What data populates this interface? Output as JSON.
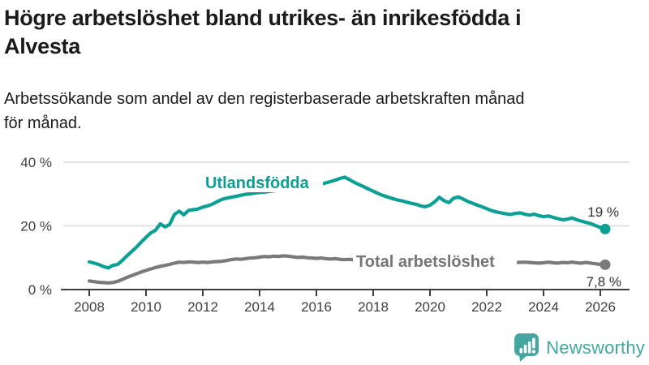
{
  "header": {
    "title_line1": "Högre arbetslöshet bland utrikes- än inrikesfödda i",
    "title_line2": "Alvesta",
    "subtitle_line1": "Arbetssökande som andel av den registerbaserade arbetskraften månad",
    "subtitle_line2": "för månad."
  },
  "branding": {
    "logo_text": "Newsworthy",
    "logo_color": "#43a79f"
  },
  "chart_data": {
    "type": "line",
    "title": "Högre arbetslöshet bland utrikes- än inrikesfödda i Alvesta",
    "subtitle": "Arbetssökande som andel av den registerbaserade arbetskraften månad för månad.",
    "xlabel": "",
    "ylabel": "",
    "xlim": [
      2007,
      2027
    ],
    "ylim": [
      0,
      40
    ],
    "grid": "horizontal",
    "legend_position": "inline-labels",
    "x_tick_years": [
      2008,
      2010,
      2012,
      2014,
      2016,
      2018,
      2020,
      2022,
      2024,
      2026
    ],
    "x_tick_labels": [
      "2008",
      "2010",
      "2012",
      "2014",
      "2016",
      "2018",
      "2020",
      "2022",
      "2024",
      "2026"
    ],
    "y_tick_values": [
      0,
      20,
      40
    ],
    "y_tick_labels": [
      "0 %",
      "20 %",
      "40 %"
    ],
    "series": [
      {
        "name": "Utlandsfödda",
        "color": "#0aa093",
        "end_label": "19 %",
        "points": [
          [
            2008.0,
            8.7
          ],
          [
            2008.17,
            8.3
          ],
          [
            2008.33,
            7.9
          ],
          [
            2008.5,
            7.2
          ],
          [
            2008.67,
            6.8
          ],
          [
            2008.83,
            7.6
          ],
          [
            2009.0,
            7.9
          ],
          [
            2009.17,
            9.2
          ],
          [
            2009.33,
            10.6
          ],
          [
            2009.5,
            12.0
          ],
          [
            2009.67,
            13.4
          ],
          [
            2009.83,
            14.9
          ],
          [
            2010.0,
            16.4
          ],
          [
            2010.17,
            17.8
          ],
          [
            2010.33,
            18.6
          ],
          [
            2010.5,
            20.6
          ],
          [
            2010.67,
            19.7
          ],
          [
            2010.83,
            20.4
          ],
          [
            2011.0,
            23.6
          ],
          [
            2011.17,
            24.6
          ],
          [
            2011.33,
            23.5
          ],
          [
            2011.5,
            24.9
          ],
          [
            2011.67,
            25.1
          ],
          [
            2011.83,
            25.3
          ],
          [
            2012.0,
            25.9
          ],
          [
            2012.17,
            26.3
          ],
          [
            2012.33,
            26.8
          ],
          [
            2012.5,
            27.6
          ],
          [
            2012.67,
            28.3
          ],
          [
            2012.83,
            28.7
          ],
          [
            2013.0,
            29.0
          ],
          [
            2013.17,
            29.3
          ],
          [
            2013.33,
            29.6
          ],
          [
            2013.5,
            29.9
          ],
          [
            2013.67,
            30.1
          ],
          [
            2013.83,
            30.3
          ],
          [
            2014.0,
            30.5
          ],
          [
            2014.17,
            30.6
          ],
          [
            2014.33,
            30.8
          ],
          [
            2014.5,
            31.0
          ],
          [
            2014.67,
            31.2
          ],
          [
            2014.83,
            31.4
          ],
          [
            2015.0,
            31.7
          ],
          [
            2015.17,
            31.9
          ],
          [
            2015.33,
            32.1
          ],
          [
            2015.5,
            32.3
          ],
          [
            2015.67,
            32.5
          ],
          [
            2015.83,
            32.6
          ],
          [
            2016.0,
            32.8
          ],
          [
            2016.17,
            33.1
          ],
          [
            2016.33,
            33.5
          ],
          [
            2016.5,
            33.9
          ],
          [
            2016.67,
            34.4
          ],
          [
            2016.83,
            34.9
          ],
          [
            2017.0,
            35.3
          ],
          [
            2017.17,
            34.5
          ],
          [
            2017.33,
            33.7
          ],
          [
            2017.5,
            33.0
          ],
          [
            2017.67,
            32.3
          ],
          [
            2017.83,
            31.6
          ],
          [
            2018.0,
            30.9
          ],
          [
            2018.17,
            30.2
          ],
          [
            2018.33,
            29.6
          ],
          [
            2018.5,
            29.1
          ],
          [
            2018.67,
            28.6
          ],
          [
            2018.83,
            28.2
          ],
          [
            2019.0,
            27.9
          ],
          [
            2019.17,
            27.5
          ],
          [
            2019.33,
            27.1
          ],
          [
            2019.5,
            26.8
          ],
          [
            2019.67,
            26.3
          ],
          [
            2019.83,
            26.0
          ],
          [
            2020.0,
            26.5
          ],
          [
            2020.17,
            27.6
          ],
          [
            2020.33,
            29.0
          ],
          [
            2020.5,
            27.9
          ],
          [
            2020.67,
            27.3
          ],
          [
            2020.83,
            28.7
          ],
          [
            2021.0,
            29.1
          ],
          [
            2021.17,
            28.4
          ],
          [
            2021.33,
            27.7
          ],
          [
            2021.5,
            27.1
          ],
          [
            2021.67,
            26.5
          ],
          [
            2021.83,
            26.0
          ],
          [
            2022.0,
            25.4
          ],
          [
            2022.17,
            24.8
          ],
          [
            2022.33,
            24.4
          ],
          [
            2022.5,
            24.1
          ],
          [
            2022.67,
            23.8
          ],
          [
            2022.83,
            23.6
          ],
          [
            2023.0,
            23.9
          ],
          [
            2023.17,
            24.1
          ],
          [
            2023.33,
            23.7
          ],
          [
            2023.5,
            23.4
          ],
          [
            2023.67,
            23.7
          ],
          [
            2023.83,
            23.2
          ],
          [
            2024.0,
            22.9
          ],
          [
            2024.17,
            23.1
          ],
          [
            2024.33,
            22.7
          ],
          [
            2024.5,
            22.3
          ],
          [
            2024.67,
            21.9
          ],
          [
            2024.83,
            22.1
          ],
          [
            2025.0,
            22.5
          ],
          [
            2025.17,
            21.9
          ],
          [
            2025.33,
            21.5
          ],
          [
            2025.5,
            21.1
          ],
          [
            2025.67,
            20.7
          ],
          [
            2025.83,
            20.1
          ],
          [
            2026.0,
            19.5
          ],
          [
            2026.17,
            19.0
          ]
        ]
      },
      {
        "name": "Total arbetslöshet",
        "color": "#7a7a7a",
        "end_label": "7,8 %",
        "points": [
          [
            2008.0,
            2.7
          ],
          [
            2008.17,
            2.5
          ],
          [
            2008.33,
            2.3
          ],
          [
            2008.5,
            2.2
          ],
          [
            2008.67,
            2.1
          ],
          [
            2008.83,
            2.2
          ],
          [
            2009.0,
            2.6
          ],
          [
            2009.17,
            3.2
          ],
          [
            2009.33,
            3.8
          ],
          [
            2009.5,
            4.4
          ],
          [
            2009.67,
            5.0
          ],
          [
            2009.83,
            5.5
          ],
          [
            2010.0,
            6.0
          ],
          [
            2010.17,
            6.5
          ],
          [
            2010.33,
            6.9
          ],
          [
            2010.5,
            7.3
          ],
          [
            2010.67,
            7.6
          ],
          [
            2010.83,
            7.9
          ],
          [
            2011.0,
            8.3
          ],
          [
            2011.17,
            8.6
          ],
          [
            2011.33,
            8.5
          ],
          [
            2011.5,
            8.7
          ],
          [
            2011.67,
            8.6
          ],
          [
            2011.83,
            8.5
          ],
          [
            2012.0,
            8.6
          ],
          [
            2012.17,
            8.5
          ],
          [
            2012.33,
            8.7
          ],
          [
            2012.5,
            8.8
          ],
          [
            2012.67,
            8.9
          ],
          [
            2012.83,
            9.1
          ],
          [
            2013.0,
            9.4
          ],
          [
            2013.17,
            9.6
          ],
          [
            2013.33,
            9.5
          ],
          [
            2013.5,
            9.7
          ],
          [
            2013.67,
            9.9
          ],
          [
            2013.83,
            10.0
          ],
          [
            2014.0,
            10.2
          ],
          [
            2014.17,
            10.4
          ],
          [
            2014.33,
            10.3
          ],
          [
            2014.5,
            10.5
          ],
          [
            2014.67,
            10.4
          ],
          [
            2014.83,
            10.6
          ],
          [
            2015.0,
            10.5
          ],
          [
            2015.17,
            10.3
          ],
          [
            2015.33,
            10.1
          ],
          [
            2015.5,
            10.2
          ],
          [
            2015.67,
            10.0
          ],
          [
            2015.83,
            9.9
          ],
          [
            2016.0,
            9.8
          ],
          [
            2016.17,
            9.9
          ],
          [
            2016.33,
            9.7
          ],
          [
            2016.5,
            9.6
          ],
          [
            2016.67,
            9.7
          ],
          [
            2016.83,
            9.5
          ],
          [
            2017.0,
            9.4
          ],
          [
            2017.17,
            9.5
          ],
          [
            2017.33,
            9.3
          ],
          [
            2017.5,
            9.2
          ],
          [
            2017.67,
            9.3
          ],
          [
            2017.83,
            9.1
          ],
          [
            2018.0,
            9.0
          ],
          [
            2018.33,
            8.9
          ],
          [
            2018.67,
            8.8
          ],
          [
            2019.0,
            8.7
          ],
          [
            2019.33,
            8.6
          ],
          [
            2019.67,
            8.6
          ],
          [
            2020.0,
            8.8
          ],
          [
            2020.33,
            10.2
          ],
          [
            2020.67,
            10.0
          ],
          [
            2021.0,
            9.8
          ],
          [
            2021.33,
            9.4
          ],
          [
            2021.67,
            9.0
          ],
          [
            2022.0,
            8.7
          ],
          [
            2022.33,
            8.5
          ],
          [
            2022.67,
            8.4
          ],
          [
            2023.0,
            8.5
          ],
          [
            2023.33,
            8.6
          ],
          [
            2023.5,
            8.5
          ],
          [
            2023.67,
            8.4
          ],
          [
            2023.83,
            8.3
          ],
          [
            2024.0,
            8.4
          ],
          [
            2024.17,
            8.6
          ],
          [
            2024.33,
            8.4
          ],
          [
            2024.5,
            8.3
          ],
          [
            2024.67,
            8.5
          ],
          [
            2024.83,
            8.4
          ],
          [
            2025.0,
            8.6
          ],
          [
            2025.17,
            8.4
          ],
          [
            2025.33,
            8.3
          ],
          [
            2025.5,
            8.5
          ],
          [
            2025.67,
            8.3
          ],
          [
            2025.83,
            8.1
          ],
          [
            2026.0,
            7.9
          ],
          [
            2026.17,
            7.8
          ]
        ]
      }
    ]
  }
}
